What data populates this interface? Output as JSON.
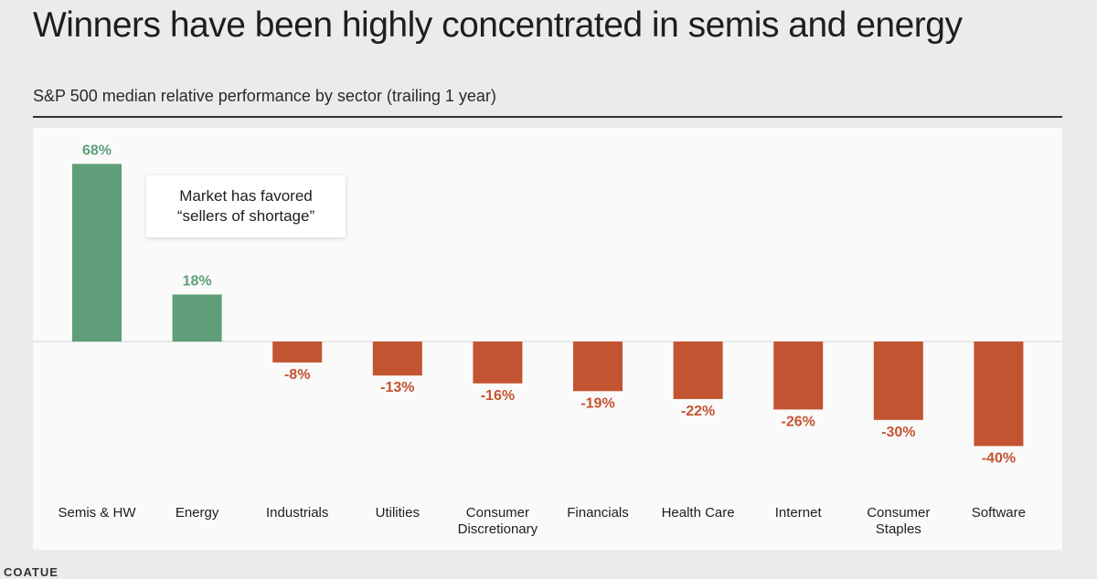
{
  "header": {
    "title": "Winners have been highly concentrated in semis and energy",
    "subtitle": "S&P 500 median relative performance by sector (trailing 1 year)"
  },
  "callout": {
    "line1": "Market has favored",
    "line2": "“sellers of shortage”"
  },
  "footer": {
    "logo_text": "COATUE"
  },
  "colors": {
    "positive": "#5f9e78",
    "negative": "#c35431",
    "baseline": "#d4d4d4",
    "label_positive": "#5f9e78",
    "label_negative": "#c35431"
  },
  "chart_data": {
    "type": "bar",
    "title": "S&P 500 median relative performance by sector (trailing 1 year)",
    "categories": [
      [
        "Semis & HW"
      ],
      [
        "Energy"
      ],
      [
        "Industrials"
      ],
      [
        "Utilities"
      ],
      [
        "Consumer",
        "Discretionary"
      ],
      [
        "Financials"
      ],
      [
        "Health Care"
      ],
      [
        "Internet"
      ],
      [
        "Consumer",
        "Staples"
      ],
      [
        "Software"
      ]
    ],
    "values": [
      68,
      18,
      -8,
      -13,
      -16,
      -19,
      -22,
      -26,
      -30,
      -40
    ],
    "value_labels": [
      "68%",
      "18%",
      "-8%",
      "-13%",
      "-16%",
      "-19%",
      "-22%",
      "-26%",
      "-30%",
      "-40%"
    ],
    "ylim": [
      -40,
      68
    ],
    "grid": false,
    "legend": "none",
    "xlabel": "",
    "ylabel": ""
  }
}
